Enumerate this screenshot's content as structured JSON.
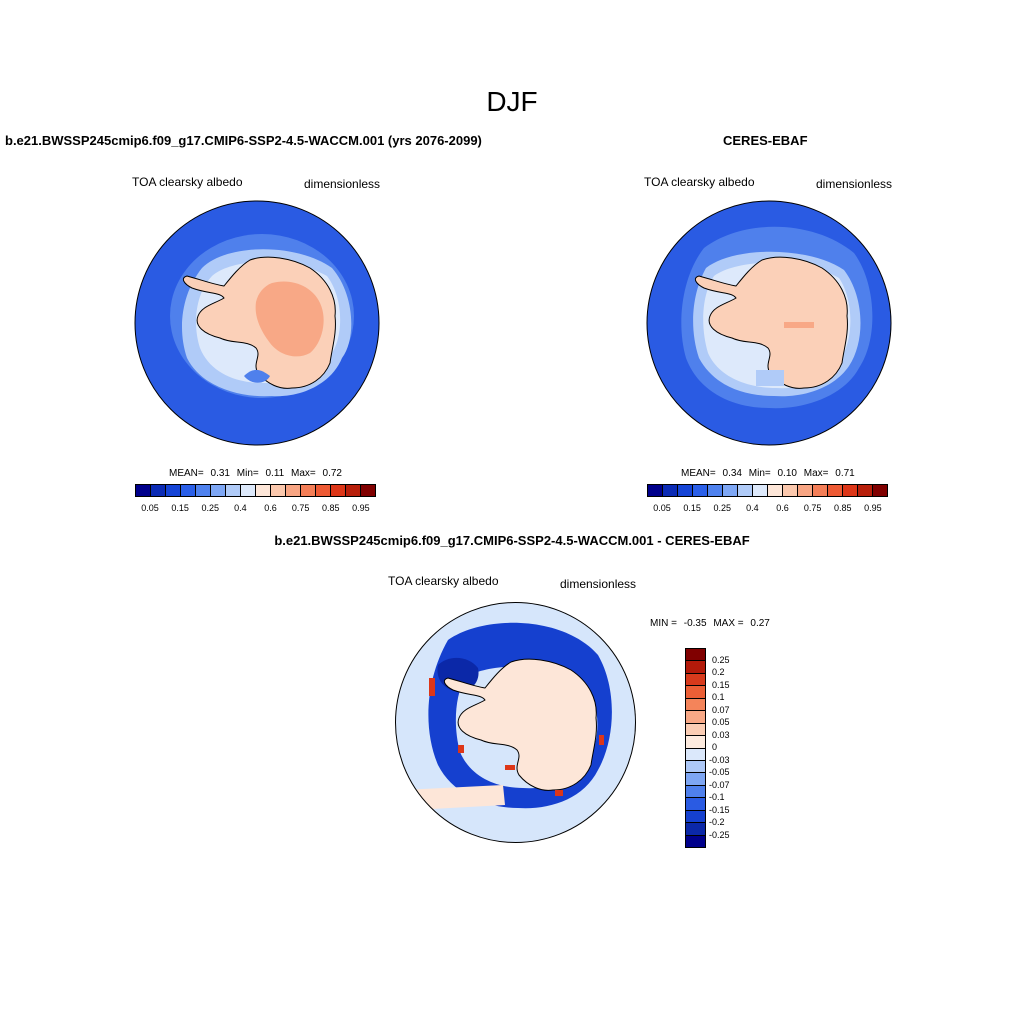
{
  "page": {
    "title": "DJF"
  },
  "panels": {
    "model": {
      "title": "b.e21.BWSSP245cmip6.f09_g17.CMIP6-SSP2-4.5-WACCM.001 (yrs 2076-2099)",
      "variable": "TOA clearsky albedo",
      "units": "dimensionless",
      "mean_label": "MEAN=",
      "mean": "0.31",
      "min_label": "Min=",
      "min": "0.11",
      "max_label": "Max=",
      "max": "0.72"
    },
    "obs": {
      "title": "CERES-EBAF",
      "variable": "TOA clearsky albedo",
      "units": "dimensionless",
      "mean_label": "MEAN=",
      "mean": "0.34",
      "min_label": "Min=",
      "min": "0.10",
      "max_label": "Max=",
      "max": "0.71"
    },
    "diff": {
      "title": "b.e21.BWSSP245cmip6.f09_g17.CMIP6-SSP2-4.5-WACCM.001 - CERES-EBAF",
      "variable": "TOA clearsky albedo",
      "units": "dimensionless",
      "min_label": "MIN =",
      "min": "-0.35",
      "max_label": "MAX =",
      "max": "0.27"
    }
  },
  "colorbar_abs": {
    "labels": [
      "0.05",
      "0.15",
      "0.25",
      "0.4",
      "0.6",
      "0.75",
      "0.85",
      "0.95"
    ],
    "colors": [
      "#00008b",
      "#0b2bb5",
      "#1544d6",
      "#2a5fe8",
      "#4f82ef",
      "#7ea7f5",
      "#b0cbf8",
      "#dde9fb",
      "#fde6d8",
      "#fbc8ad",
      "#f8a583",
      "#f47e57",
      "#ee5a34",
      "#dd3618",
      "#b81f0b",
      "#800000"
    ]
  },
  "colorbar_diff": {
    "labels": [
      "0.25",
      "0.2",
      "0.15",
      "0.1",
      "0.07",
      "0.05",
      "0.03",
      "0",
      "-0.03",
      "-0.05",
      "-0.07",
      "-0.1",
      "-0.15",
      "-0.2",
      "-0.25"
    ],
    "colors": [
      "#800000",
      "#b31a0a",
      "#d83a1c",
      "#ec5f36",
      "#f4845a",
      "#f8a886",
      "#fbcdb4",
      "#fdebdf",
      "#dbe8fb",
      "#adc8f7",
      "#7ea6f3",
      "#4f80ec",
      "#2a5be3",
      "#1540cf",
      "#0b28a8",
      "#00008b"
    ]
  },
  "map_colors": {
    "ocean": "#2a5be3",
    "ocean_mid": "#4f80ec",
    "ice_light": "#b0cbf8",
    "ice_pale": "#dde9fb",
    "land": "#fbd0b8",
    "land_high": "#f8a886",
    "diff_bg": "#d6e6fb",
    "diff_pos": "#fde6d8",
    "diff_neg_strong": "#1540cf",
    "diff_neg_deep": "#0b28a8",
    "diff_red": "#dd3618"
  }
}
